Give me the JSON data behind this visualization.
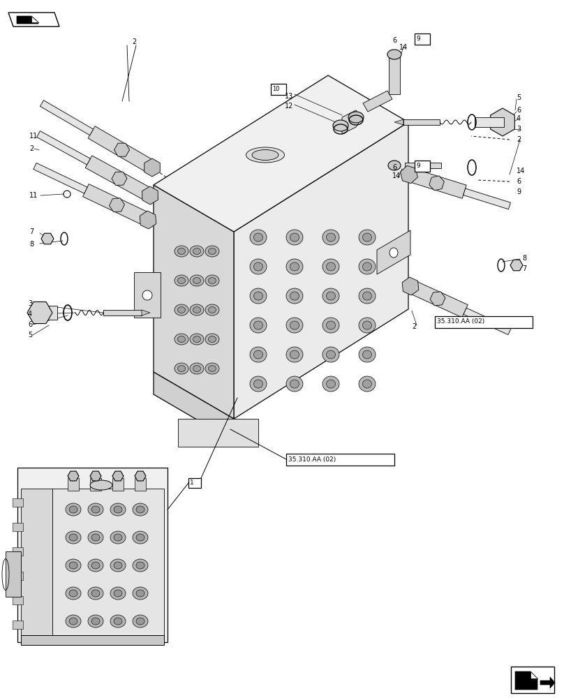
{
  "bg_color": "#ffffff",
  "fig_width": 8.08,
  "fig_height": 10.0,
  "dpi": 100,
  "gray1": "#f2f2f2",
  "gray2": "#e0e0e0",
  "gray3": "#cccccc",
  "gray4": "#b0b0b0",
  "gray5": "#888888",
  "black": "#000000"
}
